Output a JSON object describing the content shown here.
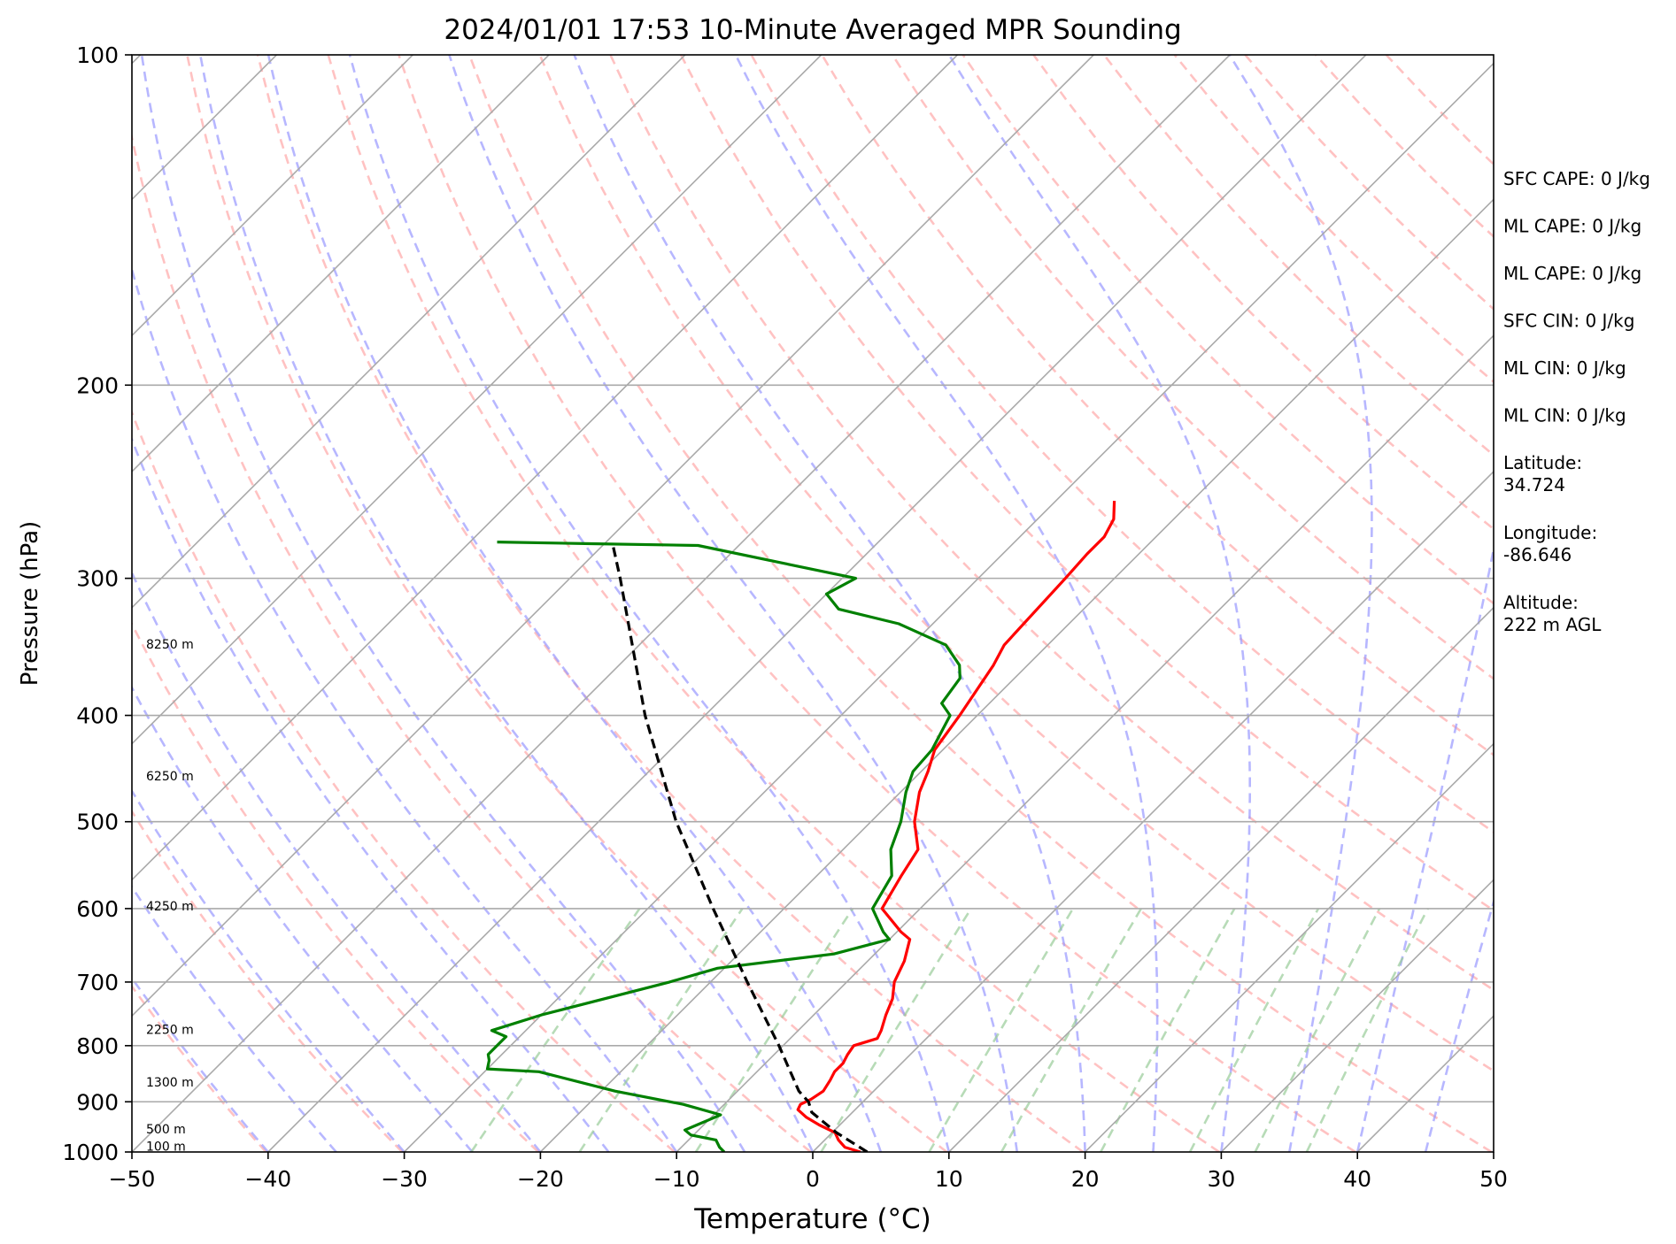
{
  "chart_data": {
    "type": "line",
    "title": "2024/01/01 17:53 10-Minute Averaged MPR Sounding",
    "xlabel": "Temperature (°C)",
    "ylabel": "Pressure (hPa)",
    "xlim": [
      -50,
      50
    ],
    "ylim": [
      1000,
      100
    ],
    "y_scale": "log",
    "x_ticks": [
      "−50",
      "−40",
      "−30",
      "−20",
      "−10",
      "0",
      "10",
      "20",
      "30",
      "40",
      "50"
    ],
    "y_ticks": [
      {
        "p": 100,
        "label": "100"
      },
      {
        "p": 200,
        "label": "200"
      },
      {
        "p": 300,
        "label": "300"
      },
      {
        "p": 400,
        "label": "400"
      },
      {
        "p": 500,
        "label": "500"
      },
      {
        "p": 600,
        "label": "600"
      },
      {
        "p": 700,
        "label": "700"
      },
      {
        "p": 800,
        "label": "800"
      },
      {
        "p": 900,
        "label": "900"
      },
      {
        "p": 1000,
        "label": "1000"
      }
    ],
    "grid": true,
    "skew": "skew-T log-P",
    "height_labels": [
      {
        "p": 345,
        "label": "8250 m"
      },
      {
        "p": 455,
        "label": "6250 m"
      },
      {
        "p": 598,
        "label": "4250 m"
      },
      {
        "p": 775,
        "label": "2250 m"
      },
      {
        "p": 865,
        "label": "1300 m"
      },
      {
        "p": 955,
        "label": "500 m"
      },
      {
        "p": 990,
        "label": "100 m"
      }
    ],
    "series": [
      {
        "role": "temperature",
        "color": "#ff0000",
        "points": [
          [
            1000,
            3.5
          ],
          [
            990,
            2.0
          ],
          [
            975,
            1.0
          ],
          [
            960,
            0.2
          ],
          [
            945,
            -1.5
          ],
          [
            930,
            -3.0
          ],
          [
            915,
            -4.2
          ],
          [
            905,
            -4.4
          ],
          [
            895,
            -4.0
          ],
          [
            880,
            -3.7
          ],
          [
            860,
            -4.0
          ],
          [
            845,
            -4.3
          ],
          [
            830,
            -4.3
          ],
          [
            815,
            -4.6
          ],
          [
            800,
            -4.8
          ],
          [
            788,
            -3.6
          ],
          [
            775,
            -3.9
          ],
          [
            750,
            -4.7
          ],
          [
            725,
            -5.4
          ],
          [
            700,
            -6.5
          ],
          [
            670,
            -7.3
          ],
          [
            640,
            -8.5
          ],
          [
            630,
            -9.7
          ],
          [
            600,
            -12.8
          ],
          [
            560,
            -13.8
          ],
          [
            530,
            -14.5
          ],
          [
            500,
            -16.8
          ],
          [
            470,
            -18.6
          ],
          [
            450,
            -19.5
          ],
          [
            430,
            -20.6
          ],
          [
            400,
            -21.3
          ],
          [
            360,
            -22.5
          ],
          [
            345,
            -23.2
          ],
          [
            300,
            -23.6
          ],
          [
            285,
            -23.8
          ],
          [
            275,
            -23.8
          ],
          [
            265,
            -24.4
          ],
          [
            255,
            -25.7
          ]
        ]
      },
      {
        "role": "dewpoint",
        "color": "#008000",
        "points": [
          [
            1000,
            -6.5
          ],
          [
            990,
            -7.2
          ],
          [
            975,
            -8.0
          ],
          [
            965,
            -10.2
          ],
          [
            955,
            -11.0
          ],
          [
            945,
            -10.5
          ],
          [
            935,
            -10.0
          ],
          [
            925,
            -9.5
          ],
          [
            905,
            -13.0
          ],
          [
            880,
            -19.0
          ],
          [
            845,
            -26.0
          ],
          [
            840,
            -30.0
          ],
          [
            825,
            -30.5
          ],
          [
            815,
            -31.0
          ],
          [
            800,
            -31.0
          ],
          [
            785,
            -31.0
          ],
          [
            775,
            -32.5
          ],
          [
            750,
            -30.0
          ],
          [
            700,
            -23.0
          ],
          [
            680,
            -20.5
          ],
          [
            660,
            -13.0
          ],
          [
            640,
            -10.0
          ],
          [
            630,
            -11.0
          ],
          [
            600,
            -13.5
          ],
          [
            560,
            -14.5
          ],
          [
            530,
            -16.5
          ],
          [
            500,
            -17.8
          ],
          [
            470,
            -19.6
          ],
          [
            450,
            -20.6
          ],
          [
            430,
            -20.8
          ],
          [
            400,
            -22.0
          ],
          [
            390,
            -23.5
          ],
          [
            370,
            -24.0
          ],
          [
            360,
            -25.0
          ],
          [
            345,
            -27.5
          ],
          [
            330,
            -32.5
          ],
          [
            320,
            -38.0
          ],
          [
            310,
            -40.0
          ],
          [
            300,
            -39.0
          ],
          [
            280,
            -53.0
          ],
          [
            279,
            -61.0
          ],
          [
            278,
            -68.0
          ]
        ]
      },
      {
        "role": "parcel",
        "color": "#000000",
        "points": [
          [
            1000,
            4.0
          ],
          [
            960,
            0.3
          ],
          [
            920,
            -3.0
          ],
          [
            900,
            -4.0
          ],
          [
            880,
            -5.5
          ],
          [
            800,
            -10.3
          ],
          [
            700,
            -17.3
          ],
          [
            600,
            -25.2
          ],
          [
            500,
            -34.3
          ],
          [
            400,
            -44.4
          ],
          [
            300,
            -56.3
          ],
          [
            279,
            -59.4
          ]
        ]
      }
    ],
    "annotations": [
      {
        "label": "SFC CAPE: 0 J/kg"
      },
      {
        "label": "ML CAPE: 0 J/kg"
      },
      {
        "label": "ML CAPE: 0 J/kg"
      },
      {
        "label": "SFC CIN: 0 J/kg"
      },
      {
        "label": "ML CIN: 0 J/kg"
      },
      {
        "label": "ML CIN: 0 J/kg"
      },
      {
        "label": "Latitude:",
        "value": "34.724"
      },
      {
        "label": "Longitude:",
        "value": "-86.646"
      },
      {
        "label": "Altitude:",
        "value": "222 m AGL"
      }
    ],
    "line_colors": {
      "isotherm": "#aaaaaa",
      "isobar": "#aaaaaa",
      "dry_adiabat": "#ff9999",
      "moist_adiabat": "#9999ff",
      "mixing_ratio": "#99cc99"
    }
  }
}
